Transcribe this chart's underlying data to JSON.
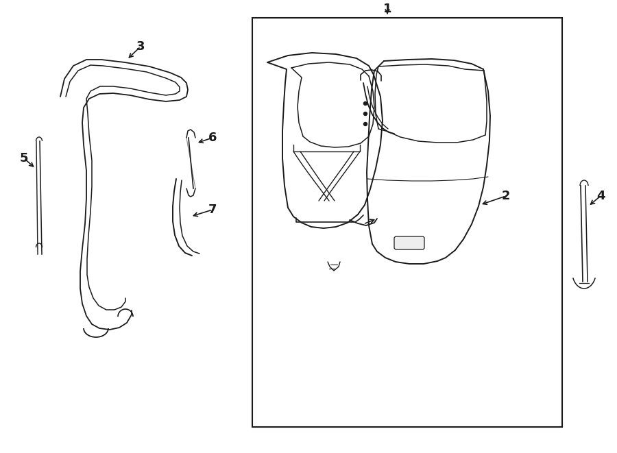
{
  "bg_color": "#ffffff",
  "line_color": "#1a1a1a",
  "line_width": 1.2,
  "fig_width": 9.0,
  "fig_height": 6.61
}
